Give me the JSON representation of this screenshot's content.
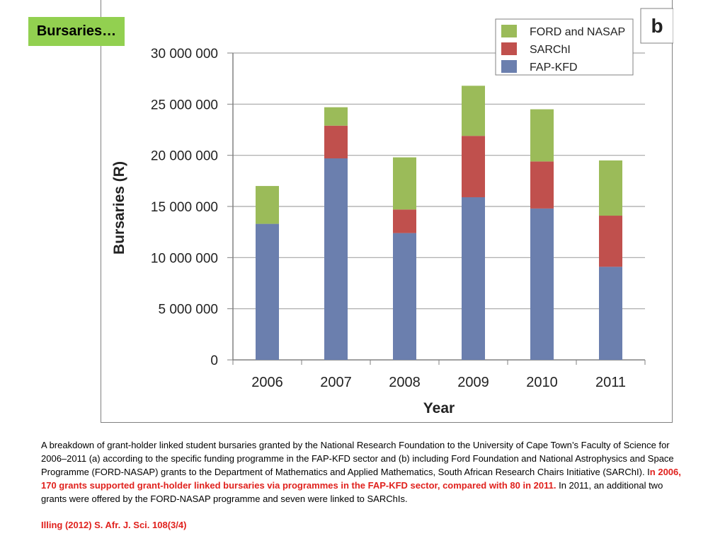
{
  "slide_title": "Bursaries…",
  "panel_label": "b",
  "chart_data": {
    "type": "bar",
    "stacked": true,
    "categories": [
      "2006",
      "2007",
      "2008",
      "2009",
      "2010",
      "2011"
    ],
    "series": [
      {
        "name": "FAP-KFD",
        "color": "#6b7fae",
        "values": [
          13300000,
          19700000,
          12400000,
          15900000,
          14800000,
          9100000
        ]
      },
      {
        "name": "SARChI",
        "color": "#c0504d",
        "values": [
          0,
          3200000,
          2300000,
          6000000,
          4600000,
          5000000
        ]
      },
      {
        "name": "FORD and NASAP",
        "color": "#9bbb59",
        "values": [
          3700000,
          1800000,
          5100000,
          4900000,
          5100000,
          5400000
        ]
      }
    ],
    "legend_order": [
      "FORD and NASAP",
      "SARChI",
      "FAP-KFD"
    ],
    "legend_placement": "top-right",
    "xlabel": "Year",
    "ylabel": "Bursaries (R)",
    "ylim": [
      0,
      30000000
    ],
    "ytick_values": [
      0,
      5000000,
      10000000,
      15000000,
      20000000,
      25000000,
      30000000
    ],
    "ytick_labels": [
      "0",
      "5 000 000",
      "10 000 000",
      "15 000 000",
      "20 000 000",
      "25 000 000",
      "30 000 000"
    ],
    "grid": true
  },
  "caption": {
    "part1": "A breakdown of grant-holder linked student bursaries granted by the National Research Foundation to the University of Cape Town’s Faculty of Science for 2006–2011 (a) according to the specific funding programme in the FAP-KFD sector and (b) including Ford Foundation and National Astrophysics and Space Programme (FORD-NASAP) grants to the Department of Mathematics and Applied Mathematics, South African Research Chairs Initiative (SARChI). I",
    "highlight": "n 2006, 170 grants supported grant-holder linked bursaries via programmes in the FAP-KFD sector, compared with 80 in 2011.",
    "part2": " In 2011, an additional two grants were offered by the FORD-NASAP programme and seven were linked to SARChIs."
  },
  "citation": "Illing (2012) S. Afr. J. Sci. 108(3/4)"
}
